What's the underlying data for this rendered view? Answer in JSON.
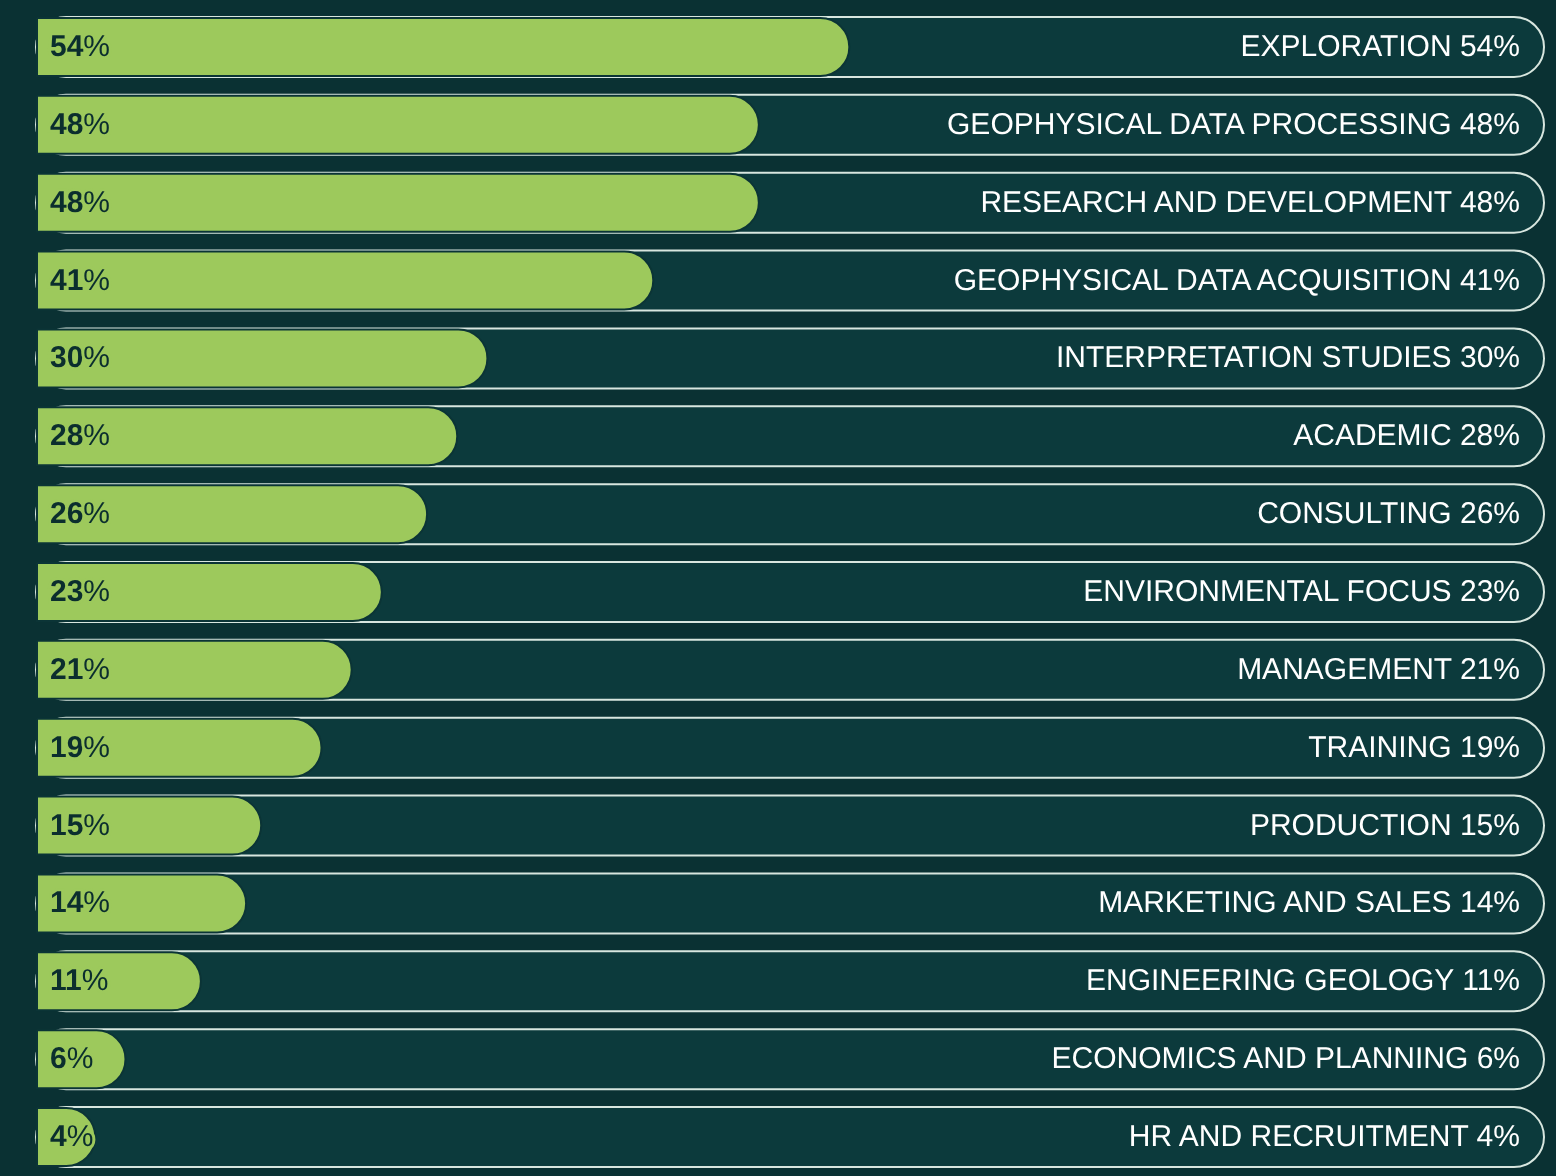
{
  "chart_data": {
    "type": "bar",
    "orientation": "horizontal",
    "categories": [
      "EXPLORATION 54%",
      "GEOPHYSICAL DATA PROCESSING 48%",
      "RESEARCH AND DEVELOPMENT 48%",
      "GEOPHYSICAL DATA ACQUISITION 41%",
      "INTERPRETATION STUDIES 30%",
      "ACADEMIC 28%",
      "CONSULTING 26%",
      "ENVIRONMENTAL FOCUS 23%",
      "MANAGEMENT 21%",
      "TRAINING 19%",
      "PRODUCTION 15%",
      "MARKETING AND SALES 14%",
      "ENGINEERING GEOLOGY 11%",
      "ECONOMICS AND PLANNING 6%",
      "HR AND RECRUITMENT 4%"
    ],
    "values": [
      54,
      48,
      48,
      41,
      30,
      28,
      26,
      23,
      21,
      19,
      15,
      14,
      11,
      6,
      4
    ],
    "value_labels": [
      "54%",
      "48%",
      "48%",
      "41%",
      "30%",
      "28%",
      "26%",
      "23%",
      "21%",
      "19%",
      "15%",
      "14%",
      "11%",
      "6%",
      "4%"
    ],
    "color": "#9dc95c",
    "xlim": [
      0,
      100
    ],
    "tick_labels": "y"
  }
}
